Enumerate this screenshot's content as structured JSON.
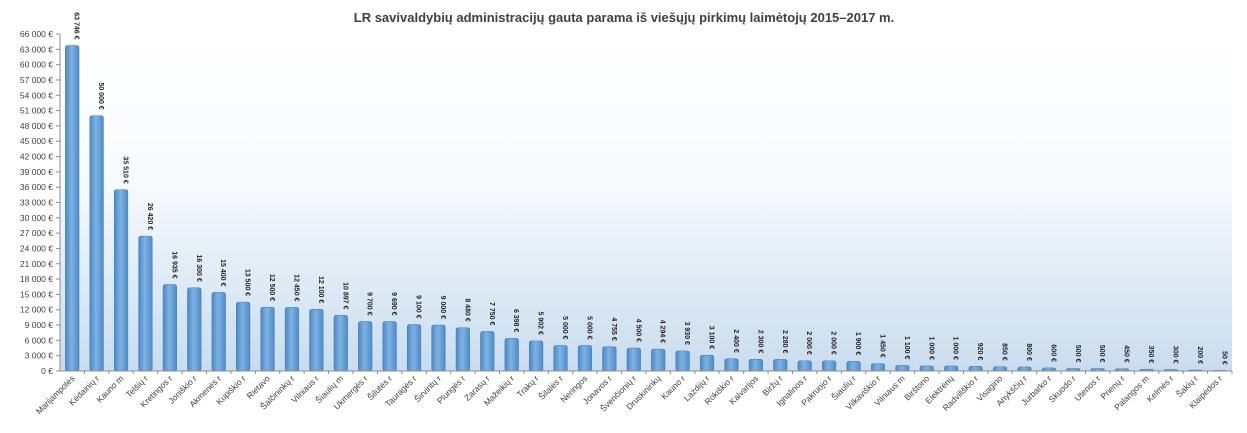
{
  "chart_data": {
    "type": "bar",
    "title": "LR savivaldybių administracijų gauta parama iš viešųjų pirkimų laimėtojų 2015–2017 m.",
    "xlabel": "",
    "ylabel": "",
    "ylim": [
      0,
      66000
    ],
    "ytick_step": 3000,
    "ytick_labels": [
      "0 €",
      "3 000 €",
      "6 000 €",
      "9 000 €",
      "12 000 €",
      "15 000 €",
      "18 000 €",
      "21 000 €",
      "24 000 €",
      "27 000 €",
      "30 000 €",
      "33 000 €",
      "36 000 €",
      "39 000 €",
      "42 000 €",
      "45 000 €",
      "48 000 €",
      "51 000 €",
      "54 000 €",
      "57 000 €",
      "60 000 €",
      "63 000 €",
      "66 000 €"
    ],
    "grid": false,
    "legend": "none",
    "bar_color": "#5b9bd5",
    "categories": [
      "Marijampolės",
      "Kėdainių r",
      "Kauno m",
      "Telšių r",
      "Kretingos r",
      "Joniškio r",
      "Akmenės r",
      "Kupiškio r",
      "Rietavo",
      "Šalčininkų r",
      "Vilniaus r",
      "Šiaulių m",
      "Ukmergės r",
      "Šilutės r",
      "Tauragės r",
      "Širvintų r",
      "Plungės r",
      "Zarasų r",
      "Mažeikių r",
      "Trakų r",
      "Šilalės r",
      "Neringos",
      "Jonavos r",
      "Švenčionių r",
      "Druskininkų",
      "Kauno r",
      "Lazdijų r",
      "Rokiškio r",
      "Kalvarijos",
      "Biržų r",
      "Ignalinos r",
      "Pakruojo r",
      "Šiaulių r",
      "Vilkaviškio r",
      "Vilniaus m",
      "Birštono",
      "Elektrėnų",
      "Radviliškio r",
      "Visagino",
      "Anykščių r",
      "Jurbarko r",
      "Skuodo r",
      "Utenos r",
      "Prienų r",
      "Palangos m",
      "Kelmės r",
      "Šakių r",
      "Klaipėdos r"
    ],
    "values": [
      63746,
      50000,
      35510,
      26420,
      16935,
      16300,
      15400,
      13500,
      12500,
      12450,
      12100,
      10897,
      9700,
      9690,
      9100,
      9000,
      8480,
      7750,
      6398,
      5902,
      5000,
      5000,
      4755,
      4500,
      4294,
      3930,
      3100,
      2400,
      2300,
      2280,
      2000,
      2000,
      1900,
      1450,
      1100,
      1000,
      1000,
      920,
      850,
      800,
      600,
      500,
      500,
      450,
      350,
      300,
      200,
      50
    ],
    "data_labels": [
      "63 746 €",
      "50 000 €",
      "35 510 €",
      "26 420 €",
      "16 935 €",
      "16 300 €",
      "15 400 €",
      "13 500 €",
      "12 500 €",
      "12 450 €",
      "12 100 €",
      "10 897 €",
      "9 700 €",
      "9 690 €",
      "9 100 €",
      "9 000 €",
      "8 480 €",
      "7 750 €",
      "6 398 €",
      "5 902 €",
      "5 000 €",
      "5 000 €",
      "4 755 €",
      "4 500 €",
      "4 294 €",
      "3 930 €",
      "3 100 €",
      "2 400 €",
      "2 300 €",
      "2 280 €",
      "2 000 €",
      "2 000 €",
      "1 900 €",
      "1 450 €",
      "1 100 €",
      "1 000 €",
      "1 000 €",
      "920 €",
      "850 €",
      "800 €",
      "600 €",
      "500 €",
      "500 €",
      "450 €",
      "350 €",
      "300 €",
      "200 €",
      "50 €"
    ]
  }
}
